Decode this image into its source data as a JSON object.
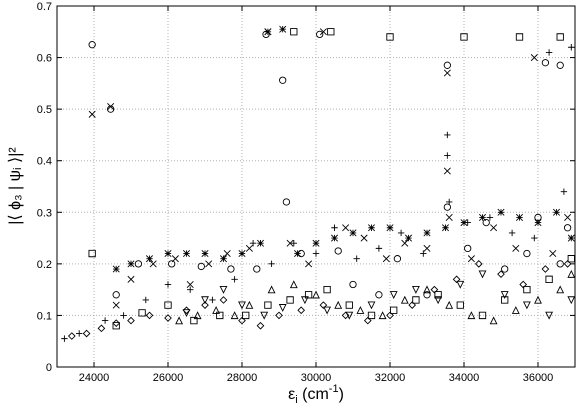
{
  "chart_data": {
    "type": "scatter",
    "xlabel": "ε",
    "xlabel_sub": "i",
    "xlabel_unit_pre": " (cm",
    "xlabel_unit_sup": "-1",
    "xlabel_unit_post": ")",
    "ylabel": "|⟨ ϕ₃ | ψᵢ ⟩|²",
    "xlim": [
      23000,
      37000
    ],
    "ylim": [
      0,
      0.7
    ],
    "x_ticks": [
      "24000",
      "26000",
      "28000",
      "30000",
      "32000",
      "34000",
      "36000"
    ],
    "y_ticks": [
      "0",
      "0.1",
      "0.2",
      "0.3",
      "0.4",
      "0.5",
      "0.6",
      "0.7"
    ],
    "grid": true,
    "legend": "none",
    "markers": [
      "+",
      "x",
      "*",
      "square",
      "circle",
      "triangle",
      "inverted-triangle",
      "diamond"
    ],
    "series": [
      {
        "marker": "circle",
        "points": [
          [
            23950,
            0.625
          ],
          [
            24450,
            0.5
          ],
          [
            24600,
            0.14
          ],
          [
            25200,
            0.2
          ],
          [
            26100,
            0.2
          ],
          [
            26900,
            0.195
          ],
          [
            27700,
            0.19
          ],
          [
            28400,
            0.19
          ],
          [
            28650,
            0.645
          ],
          [
            29100,
            0.556
          ],
          [
            29200,
            0.32
          ],
          [
            29600,
            0.22
          ],
          [
            30100,
            0.645
          ],
          [
            30600,
            0.225
          ],
          [
            31000,
            0.16
          ],
          [
            31700,
            0.14
          ],
          [
            32200,
            0.21
          ],
          [
            33000,
            0.14
          ],
          [
            33550,
            0.585
          ],
          [
            33550,
            0.31
          ],
          [
            34100,
            0.23
          ],
          [
            34600,
            0.28
          ],
          [
            35100,
            0.19
          ],
          [
            35700,
            0.22
          ],
          [
            36200,
            0.59
          ],
          [
            36600,
            0.585
          ],
          [
            36800,
            0.27
          ],
          [
            36600,
            0.2
          ],
          [
            36000,
            0.29
          ]
        ]
      },
      {
        "marker": "x",
        "points": [
          [
            23950,
            0.49
          ],
          [
            24450,
            0.505
          ],
          [
            24600,
            0.12
          ],
          [
            25000,
            0.17
          ],
          [
            25600,
            0.2
          ],
          [
            26200,
            0.21
          ],
          [
            26600,
            0.16
          ],
          [
            27100,
            0.2
          ],
          [
            27600,
            0.22
          ],
          [
            28200,
            0.23
          ],
          [
            28700,
            0.65
          ],
          [
            29300,
            0.24
          ],
          [
            29800,
            0.2
          ],
          [
            30200,
            0.65
          ],
          [
            30800,
            0.27
          ],
          [
            31300,
            0.25
          ],
          [
            31900,
            0.21
          ],
          [
            32400,
            0.24
          ],
          [
            33000,
            0.23
          ],
          [
            33550,
            0.57
          ],
          [
            33550,
            0.38
          ],
          [
            33600,
            0.29
          ],
          [
            34200,
            0.21
          ],
          [
            34800,
            0.27
          ],
          [
            35400,
            0.23
          ],
          [
            35900,
            0.6
          ],
          [
            36400,
            0.22
          ],
          [
            36800,
            0.29
          ]
        ]
      },
      {
        "marker": "+",
        "points": [
          [
            23200,
            0.055
          ],
          [
            23600,
            0.065
          ],
          [
            24300,
            0.09
          ],
          [
            24800,
            0.1
          ],
          [
            25400,
            0.13
          ],
          [
            26000,
            0.16
          ],
          [
            26600,
            0.15
          ],
          [
            27200,
            0.13
          ],
          [
            27800,
            0.17
          ],
          [
            28300,
            0.24
          ],
          [
            28800,
            0.2
          ],
          [
            29400,
            0.24
          ],
          [
            30000,
            0.22
          ],
          [
            30500,
            0.27
          ],
          [
            31100,
            0.21
          ],
          [
            31700,
            0.23
          ],
          [
            32300,
            0.26
          ],
          [
            32900,
            0.22
          ],
          [
            33550,
            0.45
          ],
          [
            33550,
            0.41
          ],
          [
            33600,
            0.32
          ],
          [
            34100,
            0.28
          ],
          [
            34700,
            0.29
          ],
          [
            35300,
            0.26
          ],
          [
            35900,
            0.25
          ],
          [
            36300,
            0.61
          ],
          [
            36700,
            0.34
          ],
          [
            36900,
            0.62
          ]
        ]
      },
      {
        "marker": "*",
        "points": [
          [
            24600,
            0.19
          ],
          [
            25000,
            0.2
          ],
          [
            25500,
            0.21
          ],
          [
            26000,
            0.22
          ],
          [
            26500,
            0.22
          ],
          [
            27000,
            0.22
          ],
          [
            27500,
            0.21
          ],
          [
            28000,
            0.22
          ],
          [
            28500,
            0.24
          ],
          [
            28700,
            0.65
          ],
          [
            29100,
            0.655
          ],
          [
            29500,
            0.22
          ],
          [
            30000,
            0.24
          ],
          [
            30500,
            0.25
          ],
          [
            31000,
            0.26
          ],
          [
            31500,
            0.27
          ],
          [
            32000,
            0.27
          ],
          [
            32500,
            0.25
          ],
          [
            33000,
            0.26
          ],
          [
            33500,
            0.27
          ],
          [
            34000,
            0.28
          ],
          [
            34500,
            0.29
          ],
          [
            35000,
            0.3
          ],
          [
            35500,
            0.29
          ],
          [
            36000,
            0.28
          ],
          [
            36500,
            0.3
          ],
          [
            36900,
            0.25
          ]
        ]
      },
      {
        "marker": "square",
        "points": [
          [
            23950,
            0.22
          ],
          [
            24600,
            0.08
          ],
          [
            25300,
            0.105
          ],
          [
            26000,
            0.12
          ],
          [
            26700,
            0.09
          ],
          [
            27400,
            0.1
          ],
          [
            28100,
            0.1
          ],
          [
            28700,
            0.12
          ],
          [
            29300,
            0.13
          ],
          [
            29800,
            0.14
          ],
          [
            30300,
            0.15
          ],
          [
            30900,
            0.12
          ],
          [
            31500,
            0.1
          ],
          [
            32100,
            0.11
          ],
          [
            32700,
            0.13
          ],
          [
            33300,
            0.14
          ],
          [
            33900,
            0.12
          ],
          [
            34500,
            0.1
          ],
          [
            35100,
            0.13
          ],
          [
            35700,
            0.15
          ],
          [
            36300,
            0.17
          ],
          [
            36900,
            0.21
          ],
          [
            36600,
            0.64
          ],
          [
            35500,
            0.64
          ],
          [
            34000,
            0.64
          ],
          [
            32000,
            0.64
          ],
          [
            30400,
            0.65
          ],
          [
            29400,
            0.65
          ]
        ]
      },
      {
        "marker": "triangle",
        "points": [
          [
            26300,
            0.09
          ],
          [
            26800,
            0.1
          ],
          [
            27300,
            0.11
          ],
          [
            27800,
            0.1
          ],
          [
            28200,
            0.12
          ],
          [
            28800,
            0.15
          ],
          [
            29400,
            0.16
          ],
          [
            30000,
            0.14
          ],
          [
            30600,
            0.12
          ],
          [
            31200,
            0.11
          ],
          [
            31800,
            0.1
          ],
          [
            32400,
            0.13
          ],
          [
            33000,
            0.15
          ],
          [
            33600,
            0.12
          ],
          [
            34200,
            0.1
          ],
          [
            34800,
            0.09
          ],
          [
            35400,
            0.11
          ],
          [
            36000,
            0.13
          ],
          [
            36600,
            0.15
          ],
          [
            36900,
            0.18
          ]
        ]
      },
      {
        "marker": "inverted-triangle",
        "points": [
          [
            26500,
            0.105
          ],
          [
            27000,
            0.13
          ],
          [
            27500,
            0.15
          ],
          [
            28000,
            0.12
          ],
          [
            28600,
            0.1
          ],
          [
            29100,
            0.115
          ],
          [
            29700,
            0.13
          ],
          [
            30300,
            0.11
          ],
          [
            30900,
            0.1
          ],
          [
            31500,
            0.12
          ],
          [
            32100,
            0.14
          ],
          [
            32700,
            0.15
          ],
          [
            33300,
            0.13
          ],
          [
            33900,
            0.16
          ],
          [
            34500,
            0.18
          ],
          [
            35100,
            0.14
          ],
          [
            35700,
            0.12
          ],
          [
            36300,
            0.1
          ],
          [
            36900,
            0.13
          ]
        ]
      },
      {
        "marker": "diamond",
        "points": [
          [
            23400,
            0.06
          ],
          [
            23800,
            0.065
          ],
          [
            24200,
            0.075
          ],
          [
            24600,
            0.085
          ],
          [
            25000,
            0.09
          ],
          [
            25500,
            0.1
          ],
          [
            26000,
            0.095
          ],
          [
            26500,
            0.11
          ],
          [
            27000,
            0.12
          ],
          [
            27500,
            0.13
          ],
          [
            28000,
            0.09
          ],
          [
            28500,
            0.08
          ],
          [
            29000,
            0.1
          ],
          [
            29600,
            0.11
          ],
          [
            30200,
            0.12
          ],
          [
            30800,
            0.1
          ],
          [
            31400,
            0.09
          ],
          [
            32000,
            0.1
          ],
          [
            32600,
            0.12
          ],
          [
            33200,
            0.15
          ],
          [
            33800,
            0.17
          ],
          [
            34400,
            0.2
          ],
          [
            35000,
            0.18
          ],
          [
            35600,
            0.16
          ],
          [
            36200,
            0.19
          ],
          [
            36800,
            0.2
          ]
        ]
      }
    ]
  }
}
